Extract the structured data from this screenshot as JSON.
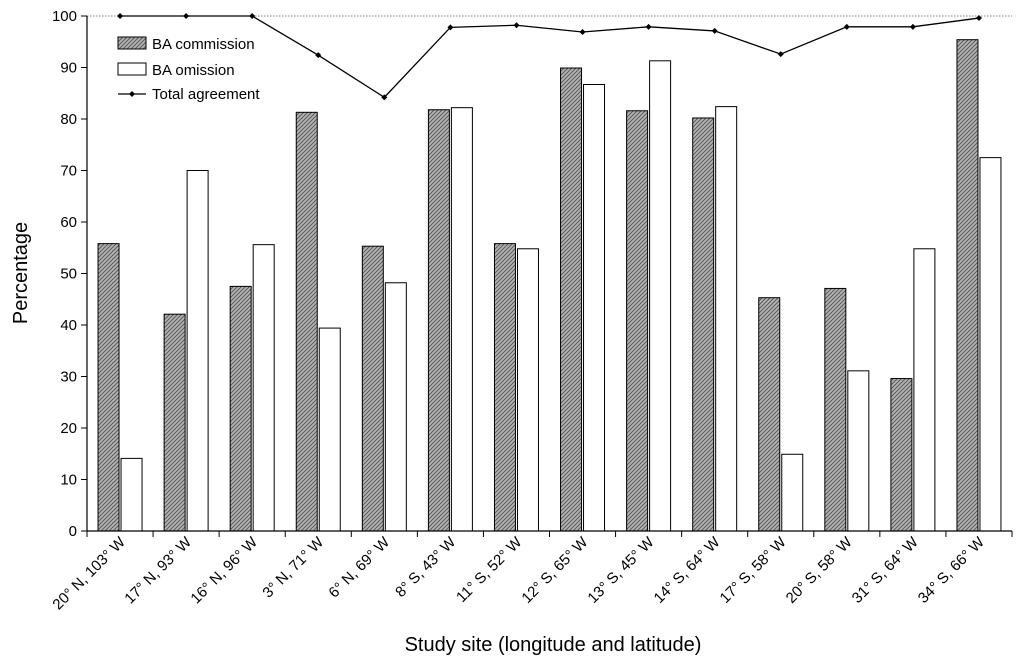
{
  "chart_data": {
    "type": "bar",
    "xlabel": "Study site (longitude and latitude)",
    "ylabel": "Percentage",
    "ylim": [
      0,
      100
    ],
    "yticks": [
      0,
      10,
      20,
      30,
      40,
      50,
      60,
      70,
      80,
      90,
      100
    ],
    "categories": [
      "20° N, 103° W",
      "17° N, 93° W",
      "16° N, 96° W",
      "3° N, 71° W",
      "6° N, 69° W",
      "8° S, 43° W",
      "11° S, 52° W",
      "12° S, 65° W",
      "13° S, 45° W",
      "14° S, 64° W",
      "17° S, 58° W",
      "20° S, 58° W",
      "31° S, 64° W",
      "34° S, 66° W"
    ],
    "series": [
      {
        "name": "BA commission",
        "type": "bar",
        "fill": "hatched-gray",
        "values": [
          55.8,
          42.1,
          47.5,
          81.3,
          55.3,
          81.8,
          55.8,
          89.9,
          81.6,
          80.2,
          45.3,
          47.1,
          29.6,
          95.4
        ]
      },
      {
        "name": "BA omission",
        "type": "bar",
        "fill": "white",
        "values": [
          14.1,
          70.0,
          55.6,
          39.4,
          48.2,
          82.2,
          54.8,
          86.7,
          91.3,
          82.4,
          14.9,
          31.1,
          54.8,
          72.5
        ]
      },
      {
        "name": "Total agreement",
        "type": "line",
        "marker": "diamond",
        "values": [
          100,
          100,
          100,
          92.4,
          84.2,
          97.8,
          98.2,
          96.9,
          97.9,
          97.1,
          92.6,
          97.9,
          97.9,
          99.6
        ]
      }
    ],
    "grid": false,
    "legend_position": "top-left",
    "colors": {
      "commission_fill": "#9a9a9a",
      "omission_fill": "#ffffff",
      "line": "#000000",
      "axis": "#000000",
      "top_guide": "#808080"
    }
  }
}
